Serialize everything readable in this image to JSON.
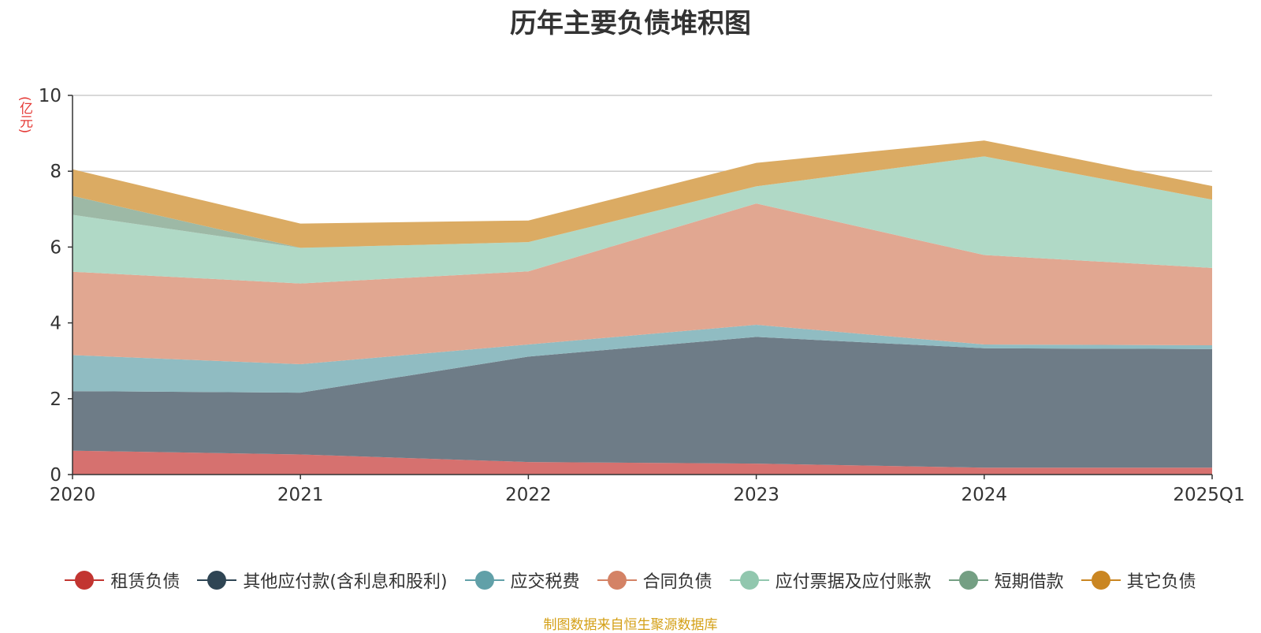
{
  "chart_data": {
    "type": "area",
    "stacked": true,
    "title": "历年主要负债堆积图",
    "ylabel": "(亿元)",
    "xlabel": "",
    "categories": [
      "2020",
      "2021",
      "2022",
      "2023",
      "2024",
      "2025Q1"
    ],
    "ylim": [
      0,
      10
    ],
    "yticks": [
      0,
      2,
      4,
      6,
      8,
      10
    ],
    "grid": true,
    "legend_position": "bottom",
    "series": [
      {
        "name": "租赁负债",
        "color": "#c23531",
        "fill": "#d6716f",
        "values": [
          0.63,
          0.53,
          0.33,
          0.29,
          0.18,
          0.18
        ]
      },
      {
        "name": "其他应付款(含利息和股利)",
        "color": "#2f4554",
        "fill": "#6e7c87",
        "values": [
          1.57,
          1.63,
          2.78,
          3.34,
          3.15,
          3.13
        ]
      },
      {
        "name": "应交税费",
        "color": "#61a0a8",
        "fill": "#90bcc2",
        "values": [
          0.95,
          0.75,
          0.32,
          0.32,
          0.1,
          0.1
        ]
      },
      {
        "name": "合同负债",
        "color": "#d48265",
        "fill": "#e1a791",
        "values": [
          2.2,
          2.13,
          1.93,
          3.2,
          2.36,
          2.04
        ]
      },
      {
        "name": "应付票据及应付账款",
        "color": "#91c7ae",
        "fill": "#b0d9c6",
        "values": [
          1.5,
          0.94,
          0.77,
          0.45,
          2.6,
          1.8
        ]
      },
      {
        "name": "短期借款",
        "color": "#749f83",
        "fill": "#9db9a6",
        "values": [
          0.5,
          0,
          0,
          0,
          0,
          0
        ]
      },
      {
        "name": "其它负债",
        "color": "#ca8622",
        "fill": "#dbab63",
        "values": [
          0.7,
          0.64,
          0.57,
          0.62,
          0.42,
          0.36
        ]
      }
    ]
  },
  "source_text": "制图数据来自恒生聚源数据库"
}
